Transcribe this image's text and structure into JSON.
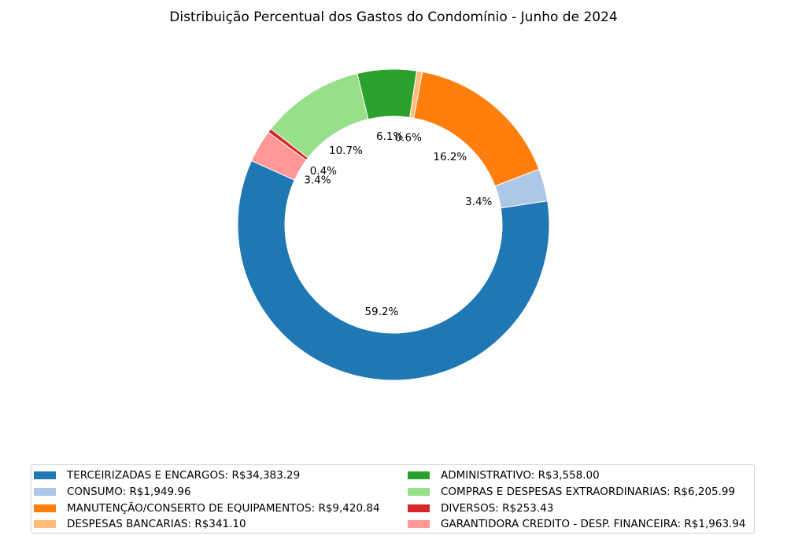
{
  "chart_data": {
    "type": "pie",
    "style": "donut",
    "title": "Distribuição Percentual dos Gastos do Condomínio - Junho de 2024",
    "slices": [
      {
        "name": "TERCEIRIZADAS E ENCARGOS",
        "value": 34383.29,
        "percent_label": "59.2%",
        "color": "#1f77b4",
        "legend_label": "TERCEIRIZADAS E ENCARGOS: R$34,383.29"
      },
      {
        "name": "CONSUMO",
        "value": 1949.96,
        "percent_label": "3.4%",
        "color": "#aec7e8",
        "legend_label": "CONSUMO: R$1,949.96"
      },
      {
        "name": "MANUTENÇÃO/CONSERTO DE EQUIPAMENTOS",
        "value": 9420.84,
        "percent_label": "16.2%",
        "color": "#ff7f0e",
        "legend_label": "MANUTENÇÃO/CONSERTO DE EQUIPAMENTOS: R$9,420.84"
      },
      {
        "name": "DESPESAS BANCARIAS",
        "value": 341.1,
        "percent_label": "0.6%",
        "color": "#ffbb78",
        "legend_label": "DESPESAS BANCARIAS: R$341.10"
      },
      {
        "name": "ADMINISTRATIVO",
        "value": 3558.0,
        "percent_label": "6.1%",
        "color": "#2ca02c",
        "legend_label": "ADMINISTRATIVO: R$3,558.00"
      },
      {
        "name": "COMPRAS E DESPESAS EXTRAORDINARIAS",
        "value": 6205.99,
        "percent_label": "10.7%",
        "color": "#98df8a",
        "legend_label": "COMPRAS E DESPESAS EXTRAORDINARIAS: R$6,205.99"
      },
      {
        "name": "DIVERSOS",
        "value": 253.43,
        "percent_label": "0.4%",
        "color": "#d62728",
        "legend_label": "DIVERSOS: R$253.43"
      },
      {
        "name": "GARANTIDORA CREDITO - DESP. FINANCEIRA",
        "value": 1963.94,
        "percent_label": "3.4%",
        "color": "#ff9896",
        "legend_label": "GARANTIDORA CREDITO - DESP. FINANCEIRA: R$1,963.94"
      }
    ],
    "legend_position": "bottom",
    "legend_columns": 2
  }
}
